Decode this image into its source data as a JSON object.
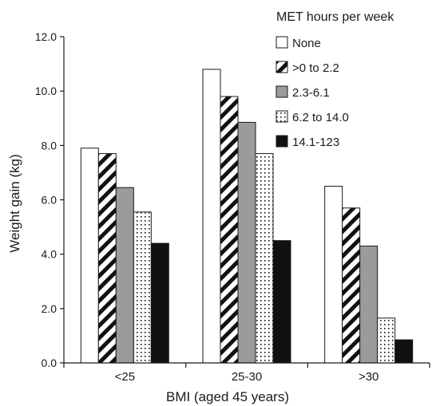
{
  "chart_data": {
    "type": "bar",
    "title": "",
    "xlabel": "BMI (aged 45 years)",
    "ylabel": "Weight gain (kg)",
    "ylim": [
      0,
      12
    ],
    "yticks": [
      "0.0",
      "2.0",
      "4.0",
      "6.0",
      "8.0",
      "10.0",
      "12.0"
    ],
    "categories": [
      "<25",
      "25-30",
      ">30"
    ],
    "grid": false,
    "legend": {
      "title": "MET hours per week",
      "placement": "top-right"
    },
    "series": [
      {
        "name": "None",
        "values": [
          7.9,
          10.8,
          6.5
        ],
        "fill": "white"
      },
      {
        "name": ">0 to 2.2",
        "values": [
          7.7,
          9.8,
          5.7
        ],
        "fill": "diagonal-stripes"
      },
      {
        "name": "2.3-6.1",
        "values": [
          6.45,
          8.85,
          4.3
        ],
        "fill": "gray"
      },
      {
        "name": "6.2 to 14.0",
        "values": [
          5.55,
          7.7,
          1.65
        ],
        "fill": "dotted"
      },
      {
        "name": "14.1-123",
        "values": [
          4.4,
          4.5,
          0.85
        ],
        "fill": "black"
      }
    ],
    "colors": {
      "gray": "#9b9b9b",
      "black": "#111111",
      "outline": "#1a1a1a"
    }
  }
}
